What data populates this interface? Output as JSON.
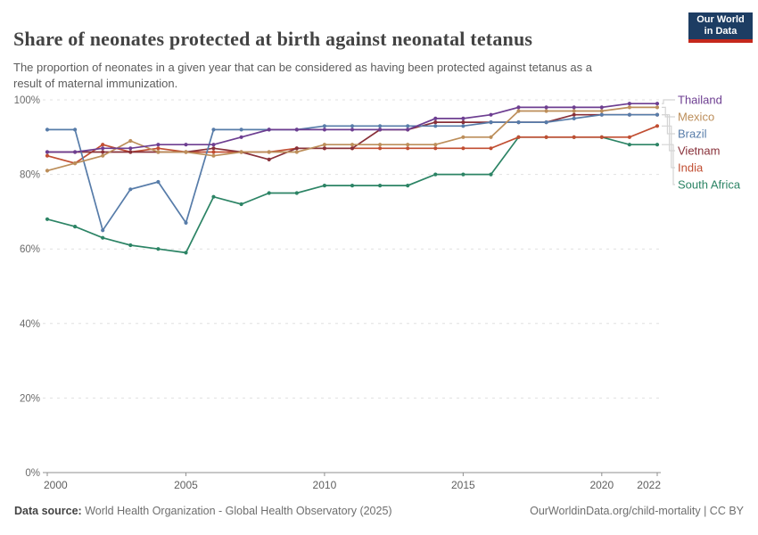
{
  "header": {
    "title": "Share of neonates protected at birth against neonatal tetanus",
    "subtitle_line1": "The proportion of neonates in a given year that can be considered as having been protected against tetanus as a",
    "subtitle_line2": "result of maternal immunization.",
    "logo": {
      "line1": "Our World",
      "line2": "in Data"
    }
  },
  "footer": {
    "source_label": "Data source:",
    "source_text": " World Health Organization - Global Health Observatory (2025)",
    "link_text": "OurWorldinData.org/child-mortality",
    "separator": " | ",
    "license": "CC BY"
  },
  "colors": {
    "title": "#434343",
    "subtitle": "#5c5c5c",
    "grid": "#e0e0e0",
    "axis": "#8f8f8f",
    "tick_label": "#6b6b6b",
    "legend_connector": "#d4d4d4",
    "logo_background": "#1d3d63",
    "logo_stripe": "#c5281c"
  },
  "chart_data": {
    "type": "line",
    "title": "Share of neonates protected at birth against neonatal tetanus",
    "x": [
      2000,
      2001,
      2002,
      2003,
      2004,
      2005,
      2006,
      2007,
      2008,
      2009,
      2010,
      2011,
      2012,
      2013,
      2014,
      2015,
      2016,
      2017,
      2018,
      2019,
      2020,
      2021,
      2022
    ],
    "series": [
      {
        "name": "Thailand",
        "color": "#6D3E91",
        "values": [
          86,
          86,
          87,
          87,
          88,
          88,
          88,
          90,
          92,
          92,
          92,
          92,
          92,
          92,
          95,
          95,
          96,
          98,
          98,
          98,
          98,
          99,
          99
        ]
      },
      {
        "name": "Mexico",
        "color": "#BC8E5A",
        "values": [
          81,
          83,
          85,
          89,
          86,
          86,
          85,
          86,
          86,
          86,
          88,
          88,
          88,
          88,
          88,
          90,
          90,
          97,
          97,
          97,
          97,
          98,
          98
        ]
      },
      {
        "name": "Brazil",
        "color": "#577CA9",
        "values": [
          92,
          92,
          65,
          76,
          78,
          67,
          92,
          92,
          92,
          92,
          93,
          93,
          93,
          93,
          93,
          93,
          94,
          94,
          94,
          95,
          96,
          96,
          96
        ]
      },
      {
        "name": "Vietnam",
        "color": "#883039",
        "values": [
          86,
          86,
          86,
          86,
          86,
          86,
          87,
          86,
          84,
          87,
          87,
          87,
          92,
          92,
          94,
          94,
          94,
          94,
          94,
          96,
          96,
          96,
          96
        ]
      },
      {
        "name": "India",
        "color": "#C14E32",
        "values": [
          85,
          83,
          88,
          86,
          87,
          86,
          86,
          86,
          86,
          87,
          87,
          87,
          87,
          87,
          87,
          87,
          87,
          90,
          90,
          90,
          90,
          90,
          93
        ]
      },
      {
        "name": "South Africa",
        "color": "#2C8465",
        "values": [
          68,
          66,
          63,
          61,
          60,
          59,
          74,
          72,
          75,
          75,
          77,
          77,
          77,
          77,
          80,
          80,
          80,
          90,
          90,
          90,
          90,
          88,
          88
        ]
      }
    ],
    "ylim": [
      0,
      100
    ],
    "yticks": [
      0,
      20,
      40,
      60,
      80,
      100
    ],
    "ytick_format": "{v}%",
    "xticks": [
      2000,
      2005,
      2010,
      2015,
      2020,
      2022
    ],
    "grid": "horizontal-dashed",
    "legend_position": "right",
    "ylabel": "",
    "xlabel": ""
  }
}
